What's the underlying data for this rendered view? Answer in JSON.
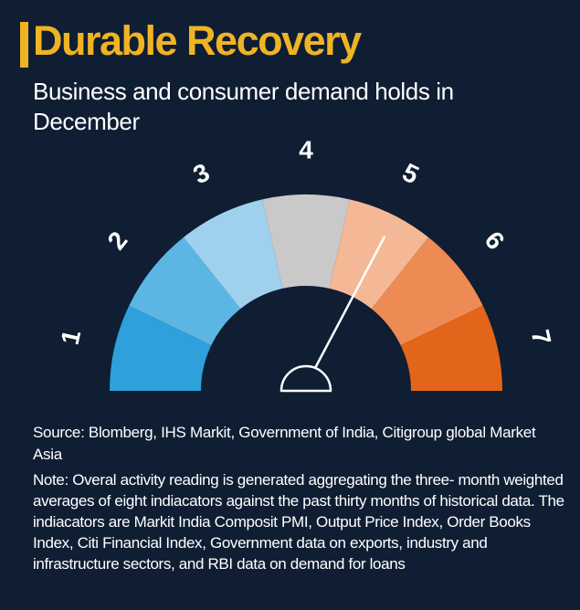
{
  "header": {
    "title": "Durable Recovery",
    "subtitle": "Business and consumer demand holds in December"
  },
  "chart_data": {
    "type": "gauge",
    "title": "Durable Recovery",
    "subtitle": "Business and consumer demand holds in December",
    "categories": [
      "1",
      "2",
      "3",
      "4",
      "5",
      "6",
      "7"
    ],
    "segment_colors": [
      "#2ea0db",
      "#5bb6e4",
      "#9fd1ef",
      "#c9c9c9",
      "#f4b897",
      "#ee8b55",
      "#e36519"
    ],
    "needle_value": 5.05,
    "scale_min": 0.5,
    "scale_max": 7.5
  },
  "footer": {
    "source": "Source: Blomberg, IHS Markit, Government of India, Citigroup global  Market Asia",
    "note": "Note: Overal activity reading is generated aggregating the three- month weighted averages of eight indiacators against the past thirty months of historical data. The indiacators are Markit India Composit PMI, Output Price Index, Order Books Index, Citi Financial Index, Government data on exports, industry and infrastructure sectors, and RBI data on demand for loans"
  }
}
